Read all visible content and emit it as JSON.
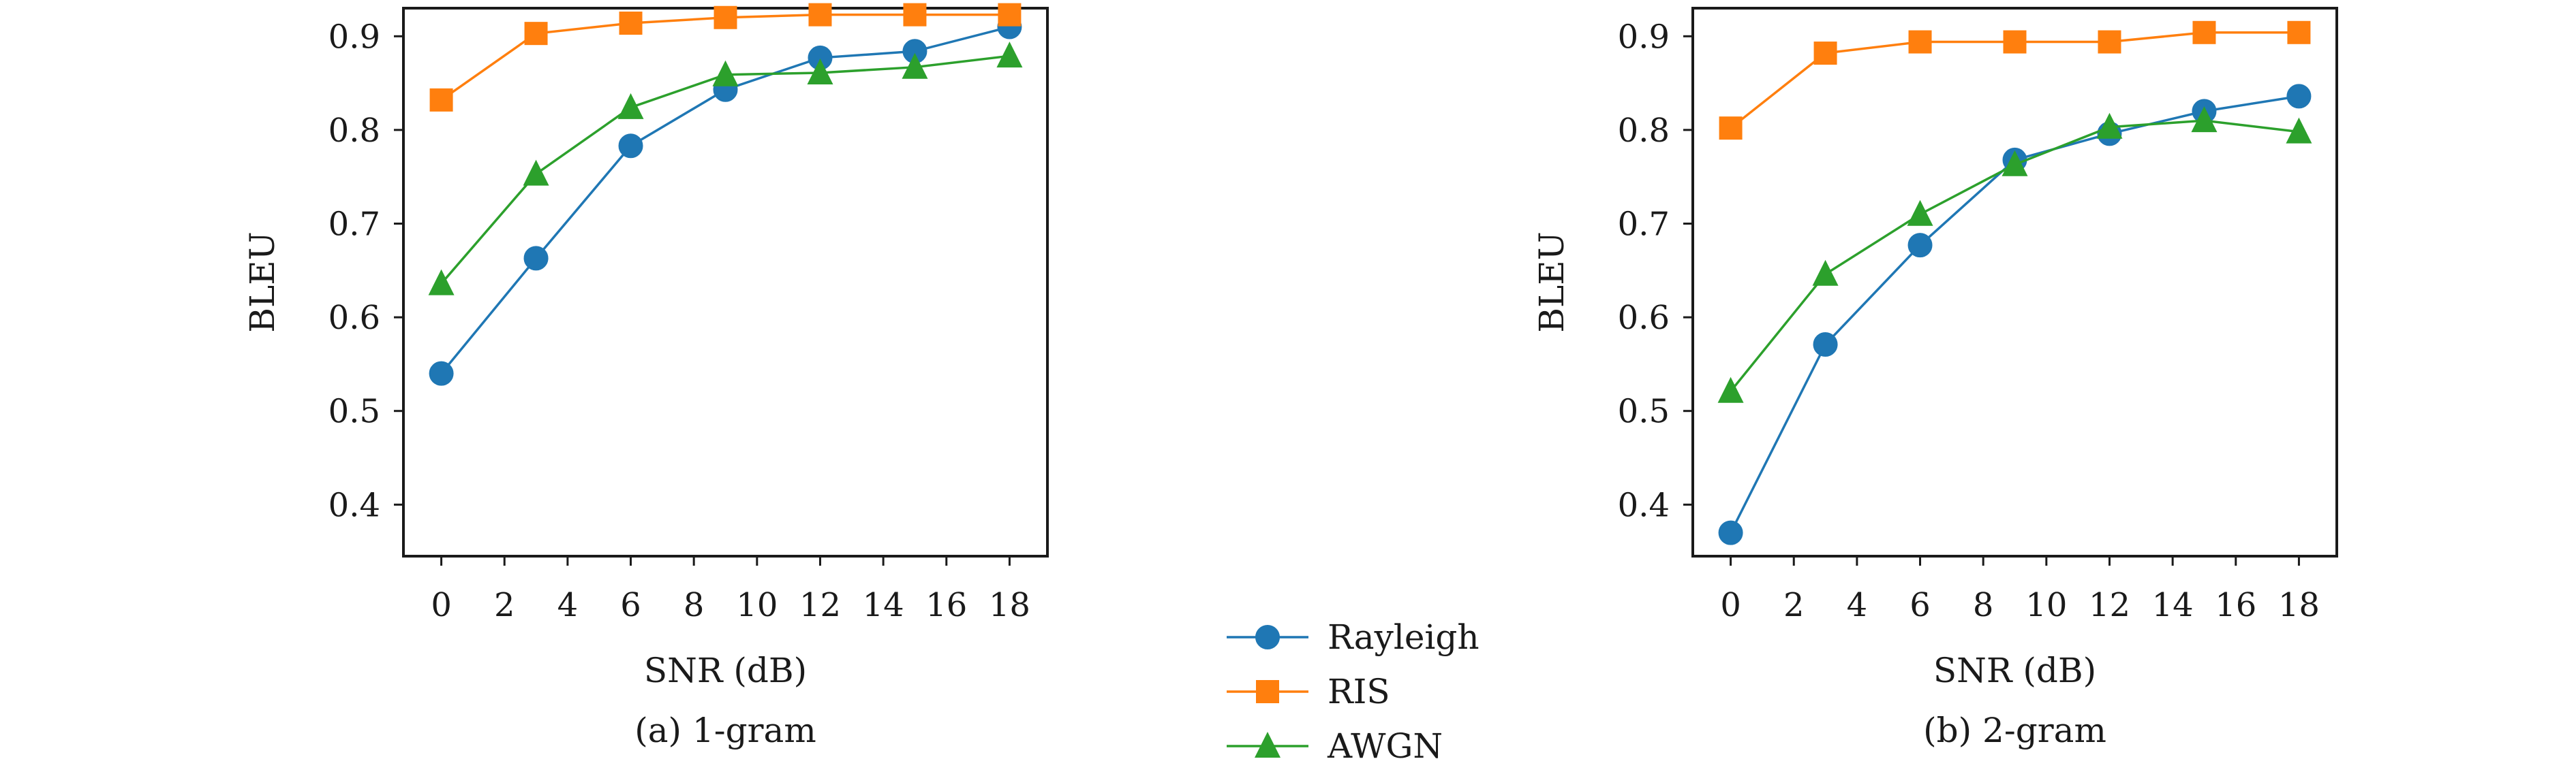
{
  "legend": {
    "items": [
      {
        "label": "Rayleigh",
        "color": "#1f77b4",
        "marker": "circle"
      },
      {
        "label": "RIS",
        "color": "#ff7f0e",
        "marker": "square"
      },
      {
        "label": "AWGN",
        "color": "#2ca02c",
        "marker": "triangle"
      }
    ]
  },
  "chart_data": [
    {
      "type": "line",
      "caption": "(a) 1-gram",
      "xlabel": "SNR (dB)",
      "ylabel": "BLEU",
      "xlim": [
        -1.2,
        19.2
      ],
      "ylim": [
        0.345,
        0.93
      ],
      "xticks": [
        0,
        2,
        4,
        6,
        8,
        10,
        12,
        14,
        16,
        18
      ],
      "yticks": [
        0.4,
        0.5,
        0.6,
        0.7,
        0.8,
        0.9
      ],
      "grid": false,
      "x": [
        0,
        3,
        6,
        9,
        12,
        15,
        18
      ],
      "series": [
        {
          "name": "Rayleigh",
          "values": [
            0.54,
            0.663,
            0.783,
            0.843,
            0.877,
            0.884,
            0.91
          ]
        },
        {
          "name": "RIS",
          "values": [
            0.832,
            0.903,
            0.914,
            0.92,
            0.923,
            0.923,
            0.923
          ]
        },
        {
          "name": "AWGN",
          "values": [
            0.636,
            0.753,
            0.824,
            0.859,
            0.861,
            0.867,
            0.879
          ]
        }
      ]
    },
    {
      "type": "line",
      "caption": "(b) 2-gram",
      "xlabel": "SNR (dB)",
      "ylabel": "BLEU",
      "xlim": [
        -1.2,
        19.2
      ],
      "ylim": [
        0.345,
        0.93
      ],
      "xticks": [
        0,
        2,
        4,
        6,
        8,
        10,
        12,
        14,
        16,
        18
      ],
      "yticks": [
        0.4,
        0.5,
        0.6,
        0.7,
        0.8,
        0.9
      ],
      "grid": false,
      "x": [
        0,
        3,
        6,
        9,
        12,
        15,
        18
      ],
      "series": [
        {
          "name": "Rayleigh",
          "values": [
            0.37,
            0.571,
            0.677,
            0.768,
            0.796,
            0.82,
            0.836
          ]
        },
        {
          "name": "RIS",
          "values": [
            0.802,
            0.882,
            0.894,
            0.894,
            0.894,
            0.904,
            0.904
          ]
        },
        {
          "name": "AWGN",
          "values": [
            0.521,
            0.646,
            0.71,
            0.763,
            0.803,
            0.81,
            0.798
          ]
        }
      ]
    }
  ]
}
